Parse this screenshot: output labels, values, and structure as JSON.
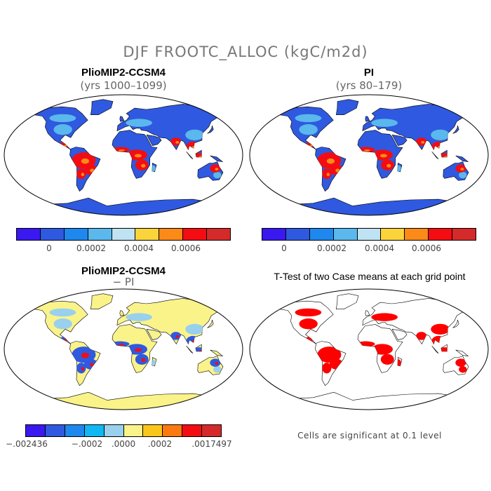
{
  "title": "DJF FROOTC_ALLOC (kgC/m2d)",
  "panels": [
    {
      "title": "PlioMIP2-CCSM4",
      "subtitle": "(yrs 1000–1099)"
    },
    {
      "title": "PI",
      "subtitle": "(yrs 80–179)"
    },
    {
      "title": "PlioMIP2-CCSM4",
      "subtitle": "− PI"
    },
    {
      "title": "T-Test of two Case means at each grid point",
      "subtitle": ""
    }
  ],
  "colorbar_abs": {
    "colors": [
      "#3a18f0",
      "#2f59e0",
      "#1e88ee",
      "#5ab8ec",
      "#bfe3f3",
      "#fbd43c",
      "#fb8a18",
      "#f30d12",
      "#d42a2a"
    ],
    "labels": [
      "0",
      "0.0002",
      "0.0004",
      "0.0006"
    ]
  },
  "colorbar_diff": {
    "colors": [
      "#3a18f0",
      "#2f59e0",
      "#1e88ee",
      "#10b8f3",
      "#99d0ee",
      "#faf38a",
      "#fbc61c",
      "#fb7a10",
      "#f30d12",
      "#d42a2a"
    ],
    "labels": [
      "−.002436",
      "−.0002",
      ".0000",
      ".0002",
      ".0017497"
    ]
  },
  "significance_note": "Cells are significant at 0.1 level",
  "colors": {
    "ocean": "#ffffff",
    "low": "#2f59e0",
    "tropics_high": "#f30d12",
    "diff_land": "#faf38a",
    "significant": "#ff0000"
  }
}
